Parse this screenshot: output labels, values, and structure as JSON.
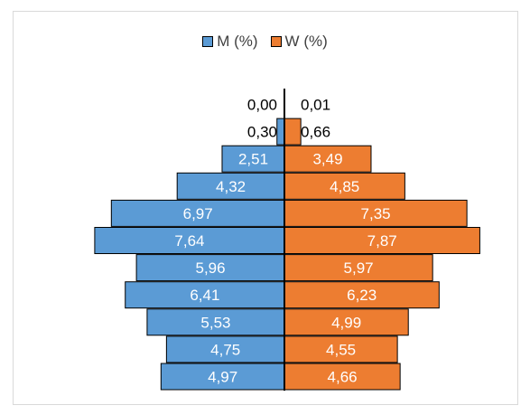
{
  "chart_data": {
    "type": "bar",
    "orientation": "horizontal",
    "layout": "population-pyramid",
    "legend_position": "top",
    "grid": false,
    "series": [
      {
        "name": "M (%)",
        "color": "#5b9bd5",
        "values": [
          0.0,
          0.3,
          2.51,
          4.32,
          6.97,
          7.64,
          5.96,
          6.41,
          5.53,
          4.75,
          4.97
        ]
      },
      {
        "name": "W (%)",
        "color": "#ed7d31",
        "values": [
          0.01,
          0.66,
          3.49,
          4.85,
          7.35,
          7.87,
          5.97,
          6.23,
          4.99,
          4.55,
          4.66
        ]
      }
    ],
    "labels_m": [
      "0,00",
      "0,30",
      "2,51",
      "4,32",
      "6,97",
      "7,64",
      "5,96",
      "6,41",
      "5,53",
      "4,75",
      "4,97"
    ],
    "labels_w": [
      "0,01",
      "0,66",
      "3,49",
      "4,85",
      "7,35",
      "7,87",
      "5,97",
      "6,23",
      "4,99",
      "4,55",
      "4,66"
    ]
  }
}
